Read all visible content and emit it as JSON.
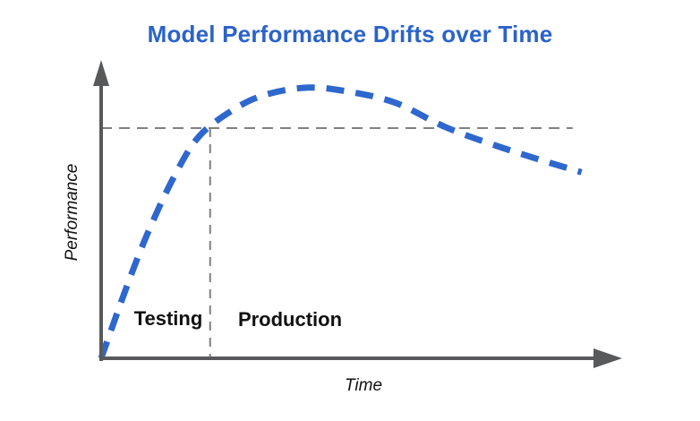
{
  "colors": {
    "title": "#2b63c9",
    "axis": "#58595b",
    "guide": "#808080",
    "curve": "#2e67cd",
    "text": "#111111",
    "background": "#ffffff"
  },
  "chart_data": {
    "type": "line",
    "title": "Model Performance Drifts over Time",
    "xlabel": "Time",
    "ylabel": "Performance",
    "grid": false,
    "legend": false,
    "axes_style": "arrow axes, no ticks, no numeric scale (conceptual chart)",
    "xlim": [
      0,
      1
    ],
    "ylim": [
      0,
      1
    ],
    "series": [
      {
        "name": "Model performance",
        "style": "dashed",
        "color": "#2e67cd",
        "x": [
          0.0,
          0.05,
          0.09,
          0.14,
          0.19,
          0.26,
          0.32,
          0.4,
          0.48,
          0.57,
          0.67,
          0.79,
          0.93
        ],
        "y": [
          0.0,
          0.26,
          0.45,
          0.65,
          0.8,
          0.9,
          0.95,
          0.975,
          0.96,
          0.92,
          0.83,
          0.75,
          0.67
        ]
      }
    ],
    "annotations": {
      "threshold_line": {
        "style": "dashed",
        "color": "#808080",
        "y": 0.829,
        "x_start": 0.0,
        "x_end": 0.913,
        "meaning": "performance level at deployment time"
      },
      "deployment_line": {
        "style": "dashed",
        "color": "#808080",
        "x": 0.211,
        "y_from": 0.0,
        "y_to": 0.829,
        "meaning": "boundary between Testing and Production phases"
      },
      "regions": [
        {
          "label": "Testing"
        },
        {
          "label": "Production"
        }
      ]
    }
  }
}
